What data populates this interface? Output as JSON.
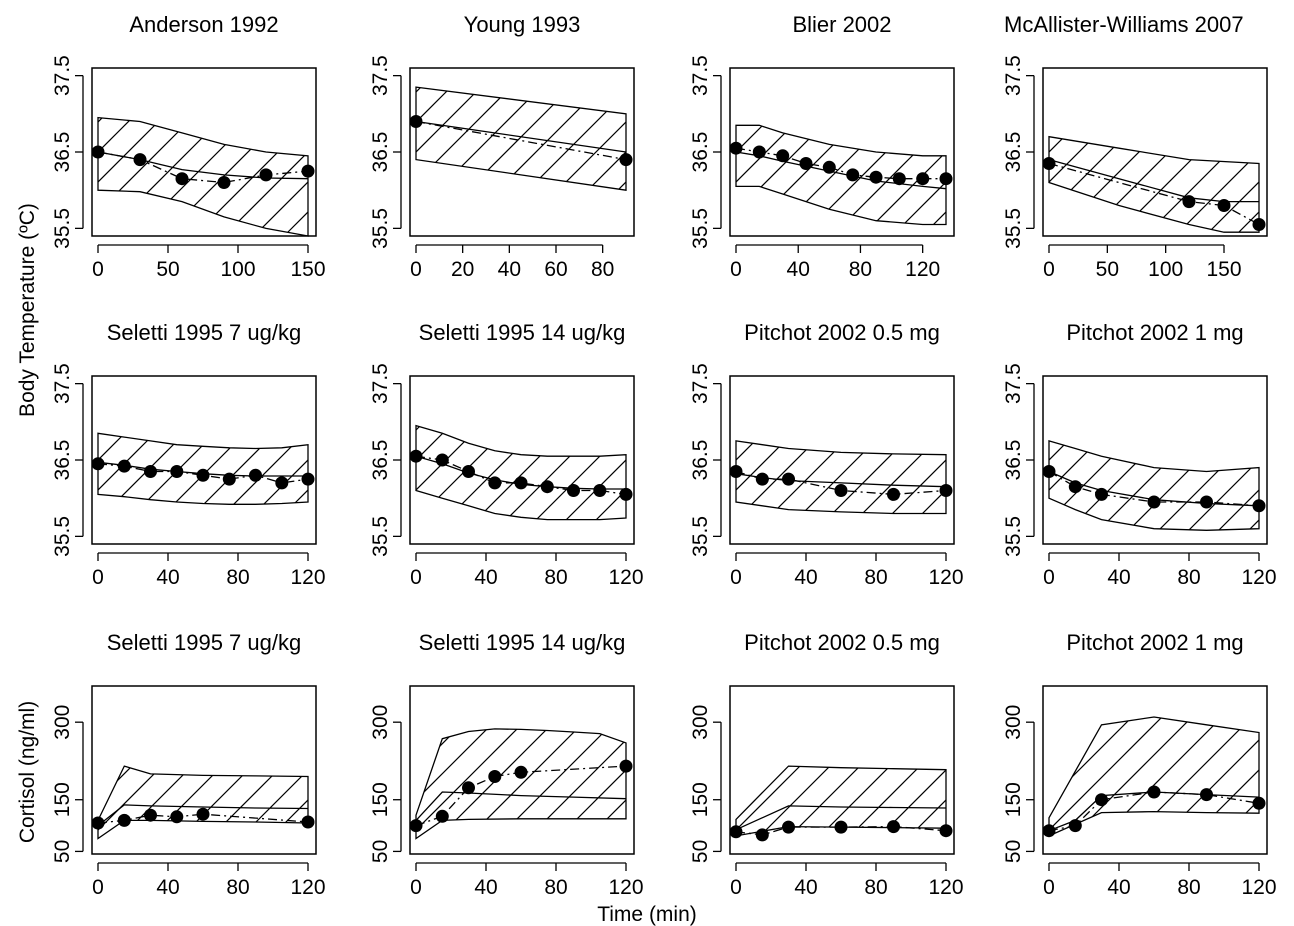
{
  "figure": {
    "ylabel_temp": "Body Temperature (ºC)",
    "ylabel_cort": "Cortisol (ng/ml)",
    "xlabel": "Time (min)"
  },
  "chart_data": [
    {
      "type": "line",
      "title": "Anderson 1992",
      "xlim": [
        0,
        150
      ],
      "ylim": [
        35.4,
        37.6
      ],
      "xticks": [
        0,
        50,
        100,
        150
      ],
      "yticks": [
        35.5,
        36.5,
        37.5
      ],
      "band_upper": {
        "x": [
          0,
          30,
          60,
          90,
          120,
          150
        ],
        "y": [
          36.95,
          36.9,
          36.75,
          36.6,
          36.5,
          36.45
        ]
      },
      "band_lower": {
        "x": [
          0,
          30,
          60,
          90,
          120,
          150
        ],
        "y": [
          36.0,
          35.98,
          35.85,
          35.65,
          35.5,
          35.4
        ]
      },
      "fit": {
        "x": [
          0,
          30,
          60,
          90,
          120,
          150
        ],
        "y": [
          36.5,
          36.4,
          36.27,
          36.2,
          36.16,
          36.15
        ]
      },
      "observed": {
        "x": [
          0,
          30,
          60,
          90,
          120,
          150
        ],
        "y": [
          36.5,
          36.4,
          36.15,
          36.1,
          36.2,
          36.25
        ]
      }
    },
    {
      "type": "line",
      "title": "Young 1993",
      "xlim": [
        0,
        90
      ],
      "ylim": [
        35.4,
        37.6
      ],
      "xticks": [
        0,
        20,
        40,
        60,
        80
      ],
      "yticks": [
        35.5,
        36.5,
        37.5
      ],
      "band_upper": {
        "x": [
          0,
          90
        ],
        "y": [
          37.35,
          37.0
        ]
      },
      "band_lower": {
        "x": [
          0,
          90
        ],
        "y": [
          36.4,
          36.0
        ]
      },
      "fit": {
        "x": [
          0,
          90
        ],
        "y": [
          36.9,
          36.5
        ]
      },
      "observed": {
        "x": [
          0,
          90
        ],
        "y": [
          36.9,
          36.4
        ]
      }
    },
    {
      "type": "line",
      "title": "Blier 2002",
      "xlim": [
        0,
        135
      ],
      "ylim": [
        35.4,
        37.6
      ],
      "xticks": [
        0,
        40,
        80,
        120
      ],
      "yticks": [
        35.5,
        36.5,
        37.5
      ],
      "band_upper": {
        "x": [
          0,
          15,
          30,
          60,
          90,
          120,
          135
        ],
        "y": [
          36.85,
          36.85,
          36.75,
          36.6,
          36.5,
          36.45,
          36.45
        ]
      },
      "band_lower": {
        "x": [
          0,
          15,
          30,
          60,
          90,
          120,
          135
        ],
        "y": [
          36.05,
          36.05,
          35.95,
          35.75,
          35.6,
          35.55,
          35.55
        ]
      },
      "fit": {
        "x": [
          0,
          15,
          30,
          60,
          90,
          120,
          135
        ],
        "y": [
          36.5,
          36.45,
          36.38,
          36.25,
          36.12,
          36.05,
          36.02
        ]
      },
      "observed": {
        "x": [
          0,
          15,
          30,
          45,
          60,
          75,
          90,
          105,
          120,
          135
        ],
        "y": [
          36.55,
          36.5,
          36.45,
          36.35,
          36.3,
          36.2,
          36.17,
          36.15,
          36.15,
          36.15
        ]
      }
    },
    {
      "type": "line",
      "title": "McAllister-Williams 2007",
      "xlim": [
        0,
        180
      ],
      "ylim": [
        35.4,
        37.6
      ],
      "xticks": [
        0,
        50,
        100,
        150
      ],
      "yticks": [
        35.5,
        36.5,
        37.5
      ],
      "band_upper": {
        "x": [
          0,
          60,
          120,
          180
        ],
        "y": [
          36.7,
          36.55,
          36.4,
          36.35
        ]
      },
      "band_lower": {
        "x": [
          0,
          60,
          120,
          150,
          180
        ],
        "y": [
          36.1,
          35.8,
          35.55,
          35.45,
          35.45
        ]
      },
      "fit": {
        "x": [
          0,
          60,
          120,
          150,
          180
        ],
        "y": [
          36.4,
          36.15,
          35.9,
          35.85,
          35.85
        ]
      },
      "observed": {
        "x": [
          0,
          120,
          150,
          180
        ],
        "y": [
          36.35,
          35.85,
          35.8,
          35.55
        ]
      }
    },
    {
      "type": "line",
      "title": "Seletti 1995  7 ug/kg",
      "xlim": [
        0,
        120
      ],
      "ylim": [
        35.4,
        37.6
      ],
      "xticks": [
        0,
        40,
        80,
        120
      ],
      "yticks": [
        35.5,
        36.5,
        37.5
      ],
      "band_upper": {
        "x": [
          0,
          15,
          30,
          45,
          60,
          75,
          90,
          105,
          120
        ],
        "y": [
          36.85,
          36.8,
          36.75,
          36.7,
          36.68,
          36.66,
          36.65,
          36.66,
          36.7
        ]
      },
      "band_lower": {
        "x": [
          0,
          15,
          30,
          45,
          60,
          75,
          90,
          105,
          120
        ],
        "y": [
          36.05,
          36.02,
          35.98,
          35.95,
          35.93,
          35.92,
          35.92,
          35.93,
          35.95
        ]
      },
      "fit": {
        "x": [
          0,
          15,
          30,
          45,
          60,
          75,
          90,
          105,
          120
        ],
        "y": [
          36.47,
          36.43,
          36.38,
          36.35,
          36.32,
          36.3,
          36.29,
          36.29,
          36.29
        ]
      },
      "observed": {
        "x": [
          0,
          15,
          30,
          45,
          60,
          75,
          90,
          105,
          120
        ],
        "y": [
          36.45,
          36.42,
          36.35,
          36.35,
          36.3,
          36.25,
          36.3,
          36.2,
          36.25
        ]
      }
    },
    {
      "type": "line",
      "title": "Seletti 1995  14 ug/kg",
      "xlim": [
        0,
        120
      ],
      "ylim": [
        35.4,
        37.6
      ],
      "xticks": [
        0,
        40,
        80,
        120
      ],
      "yticks": [
        35.5,
        36.5,
        37.5
      ],
      "band_upper": {
        "x": [
          0,
          15,
          30,
          45,
          60,
          75,
          90,
          105,
          120
        ],
        "y": [
          36.95,
          36.85,
          36.72,
          36.62,
          36.57,
          36.55,
          36.55,
          36.55,
          36.57
        ]
      },
      "band_lower": {
        "x": [
          0,
          15,
          30,
          45,
          60,
          75,
          90,
          105,
          120
        ],
        "y": [
          36.1,
          36.0,
          35.9,
          35.8,
          35.75,
          35.72,
          35.72,
          35.72,
          35.74
        ]
      },
      "fit": {
        "x": [
          0,
          15,
          30,
          45,
          60,
          75,
          90,
          105,
          120
        ],
        "y": [
          36.55,
          36.45,
          36.33,
          36.24,
          36.18,
          36.15,
          36.13,
          36.12,
          36.12
        ]
      },
      "observed": {
        "x": [
          0,
          15,
          30,
          45,
          60,
          75,
          90,
          105,
          120
        ],
        "y": [
          36.55,
          36.5,
          36.35,
          36.2,
          36.2,
          36.15,
          36.1,
          36.1,
          36.05
        ]
      }
    },
    {
      "type": "line",
      "title": "Pitchot 2002  0.5 mg",
      "xlim": [
        0,
        120
      ],
      "ylim": [
        35.4,
        37.6
      ],
      "xticks": [
        0,
        40,
        80,
        120
      ],
      "yticks": [
        35.5,
        36.5,
        37.5
      ],
      "band_upper": {
        "x": [
          0,
          15,
          30,
          60,
          90,
          120
        ],
        "y": [
          36.75,
          36.7,
          36.65,
          36.6,
          36.58,
          36.57
        ]
      },
      "band_lower": {
        "x": [
          0,
          15,
          30,
          60,
          90,
          120
        ],
        "y": [
          35.95,
          35.9,
          35.85,
          35.82,
          35.8,
          35.8
        ]
      },
      "fit": {
        "x": [
          0,
          15,
          30,
          60,
          90,
          120
        ],
        "y": [
          36.32,
          36.27,
          36.23,
          36.2,
          36.17,
          36.15
        ]
      },
      "observed": {
        "x": [
          0,
          15,
          30,
          60,
          90,
          120
        ],
        "y": [
          36.35,
          36.25,
          36.25,
          36.1,
          36.05,
          36.1
        ]
      }
    },
    {
      "type": "line",
      "title": "Pitchot 2002  1 mg",
      "xlim": [
        0,
        120
      ],
      "ylim": [
        35.4,
        37.6
      ],
      "xticks": [
        0,
        40,
        80,
        120
      ],
      "yticks": [
        35.5,
        36.5,
        37.5
      ],
      "band_upper": {
        "x": [
          0,
          15,
          30,
          60,
          90,
          120
        ],
        "y": [
          36.75,
          36.65,
          36.55,
          36.4,
          36.35,
          36.4
        ]
      },
      "band_lower": {
        "x": [
          0,
          15,
          30,
          60,
          90,
          120
        ],
        "y": [
          36.0,
          35.85,
          35.72,
          35.6,
          35.58,
          35.6
        ]
      },
      "fit": {
        "x": [
          0,
          15,
          30,
          60,
          90,
          120
        ],
        "y": [
          36.35,
          36.2,
          36.1,
          35.98,
          35.93,
          35.9
        ]
      },
      "observed": {
        "x": [
          0,
          15,
          30,
          60,
          90,
          120
        ],
        "y": [
          36.35,
          36.15,
          36.05,
          35.95,
          35.95,
          35.9
        ]
      }
    },
    {
      "type": "line",
      "title": "Seletti 1995  7 ug/kg",
      "xlim": [
        0,
        120
      ],
      "ylim": [
        45,
        370
      ],
      "xticks": [
        0,
        40,
        80,
        120
      ],
      "yticks": [
        50,
        150,
        300
      ],
      "band_upper": {
        "x": [
          0,
          15,
          30,
          60,
          90,
          120
        ],
        "y": [
          110,
          215,
          200,
          197,
          196,
          195
        ]
      },
      "band_lower": {
        "x": [
          0,
          15,
          30,
          60,
          90,
          120
        ],
        "y": [
          75,
          110,
          110,
          108,
          107,
          105
        ]
      },
      "fit": {
        "x": [
          0,
          15,
          30,
          60,
          90,
          120
        ],
        "y": [
          100,
          140,
          138,
          136,
          134,
          133
        ]
      },
      "observed": {
        "x": [
          0,
          15,
          30,
          45,
          60,
          120
        ],
        "y": [
          105,
          110,
          120,
          117,
          122,
          107
        ]
      }
    },
    {
      "type": "line",
      "title": "Seletti 1995  14 ug/kg",
      "xlim": [
        0,
        120
      ],
      "ylim": [
        45,
        370
      ],
      "xticks": [
        0,
        40,
        80,
        120
      ],
      "yticks": [
        50,
        150,
        300
      ],
      "band_upper": {
        "x": [
          0,
          15,
          30,
          45,
          60,
          75,
          90,
          105,
          120
        ],
        "y": [
          120,
          268,
          282,
          287,
          286,
          284,
          281,
          278,
          260
        ]
      },
      "band_lower": {
        "x": [
          0,
          15,
          30,
          60,
          90,
          120
        ],
        "y": [
          75,
          110,
          112,
          113,
          113,
          113
        ]
      },
      "fit": {
        "x": [
          0,
          15,
          30,
          60,
          90,
          120
        ],
        "y": [
          110,
          165,
          163,
          158,
          155,
          152
        ]
      },
      "observed": {
        "x": [
          0,
          15,
          30,
          45,
          60,
          120
        ],
        "y": [
          100,
          118,
          173,
          195,
          203,
          215
        ]
      }
    },
    {
      "type": "line",
      "title": "Pitchot 2002  0.5 mg",
      "xlim": [
        0,
        120
      ],
      "ylim": [
        45,
        370
      ],
      "xticks": [
        0,
        40,
        80,
        120
      ],
      "yticks": [
        50,
        150,
        300
      ],
      "band_upper": {
        "x": [
          0,
          30,
          60,
          90,
          120
        ],
        "y": [
          112,
          215,
          212,
          210,
          208
        ]
      },
      "band_lower": {
        "x": [
          0,
          30,
          60,
          90,
          120
        ],
        "y": [
          80,
          98,
          97,
          96,
          95
        ]
      },
      "fit": {
        "x": [
          0,
          30,
          60,
          90,
          120
        ],
        "y": [
          92,
          138,
          136,
          135,
          134
        ]
      },
      "observed": {
        "x": [
          0,
          15,
          30,
          60,
          90,
          120
        ],
        "y": [
          88,
          82,
          97,
          97,
          98,
          90
        ]
      }
    },
    {
      "type": "line",
      "title": "Pitchot 2002  1 mg",
      "xlim": [
        0,
        120
      ],
      "ylim": [
        45,
        370
      ],
      "xticks": [
        0,
        40,
        80,
        120
      ],
      "yticks": [
        50,
        150,
        300
      ],
      "band_upper": {
        "x": [
          0,
          30,
          60,
          90,
          120
        ],
        "y": [
          115,
          295,
          310,
          295,
          280
        ]
      },
      "band_lower": {
        "x": [
          0,
          30,
          60,
          90,
          120
        ],
        "y": [
          80,
          125,
          127,
          125,
          124
        ]
      },
      "fit": {
        "x": [
          0,
          15,
          30,
          60,
          90,
          120
        ],
        "y": [
          90,
          110,
          158,
          165,
          160,
          155
        ]
      },
      "observed": {
        "x": [
          0,
          15,
          30,
          60,
          90,
          120
        ],
        "y": [
          90,
          100,
          150,
          165,
          160,
          143
        ]
      }
    }
  ]
}
